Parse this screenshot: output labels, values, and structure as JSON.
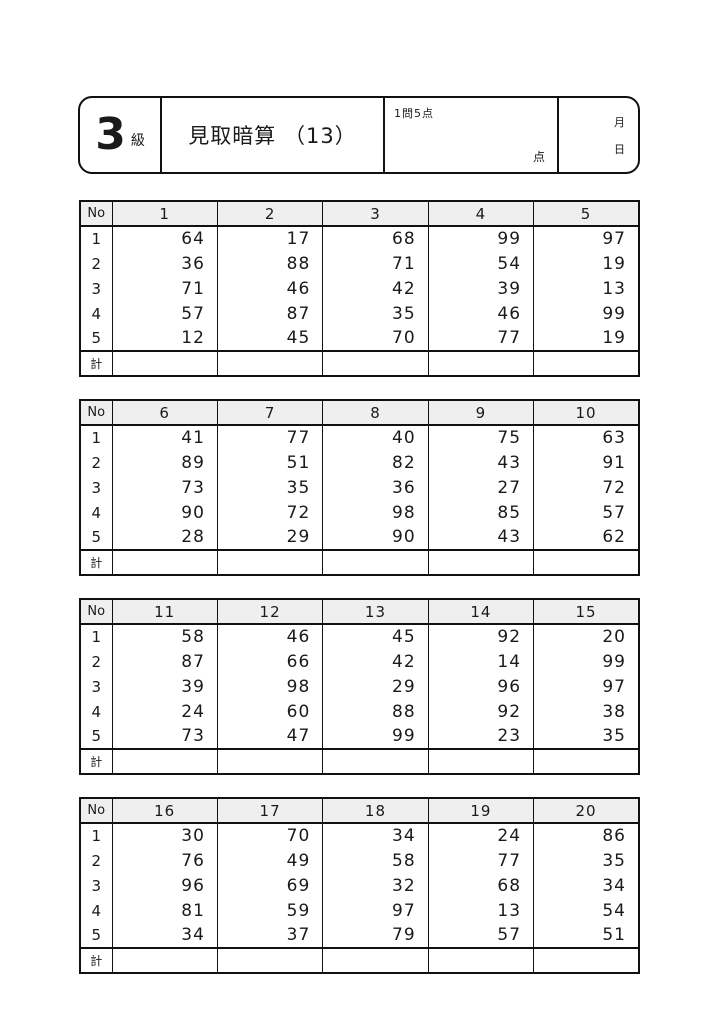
{
  "header": {
    "grade_number": "3",
    "grade_suffix": "級",
    "title": "見取暗算 （13）",
    "points_note": "1問5点",
    "points_label": "点",
    "month_label": "月",
    "day_label": "日"
  },
  "table_labels": {
    "no_header": "No",
    "row_labels": [
      "1",
      "2",
      "3",
      "4",
      "5"
    ],
    "total_label": "計"
  },
  "tables": [
    {
      "columns": [
        "1",
        "2",
        "3",
        "4",
        "5"
      ],
      "rows": [
        [
          64,
          17,
          68,
          99,
          97
        ],
        [
          36,
          88,
          71,
          54,
          19
        ],
        [
          71,
          46,
          42,
          39,
          13
        ],
        [
          57,
          87,
          35,
          46,
          99
        ],
        [
          12,
          45,
          70,
          77,
          19
        ]
      ]
    },
    {
      "columns": [
        "6",
        "7",
        "8",
        "9",
        "10"
      ],
      "rows": [
        [
          41,
          77,
          40,
          75,
          63
        ],
        [
          89,
          51,
          82,
          43,
          91
        ],
        [
          73,
          35,
          36,
          27,
          72
        ],
        [
          90,
          72,
          98,
          85,
          57
        ],
        [
          28,
          29,
          90,
          43,
          62
        ]
      ]
    },
    {
      "columns": [
        "11",
        "12",
        "13",
        "14",
        "15"
      ],
      "rows": [
        [
          58,
          46,
          45,
          92,
          20
        ],
        [
          87,
          66,
          42,
          14,
          99
        ],
        [
          39,
          98,
          29,
          96,
          97
        ],
        [
          24,
          60,
          88,
          92,
          38
        ],
        [
          73,
          47,
          99,
          23,
          35
        ]
      ]
    },
    {
      "columns": [
        "16",
        "17",
        "18",
        "19",
        "20"
      ],
      "rows": [
        [
          30,
          70,
          34,
          24,
          86
        ],
        [
          76,
          49,
          58,
          77,
          35
        ],
        [
          96,
          69,
          32,
          68,
          34
        ],
        [
          81,
          59,
          97,
          13,
          54
        ],
        [
          34,
          37,
          79,
          57,
          51
        ]
      ]
    }
  ],
  "colors": {
    "table_header_bg": "#efefef",
    "border": "#111111",
    "background": "#ffffff"
  }
}
